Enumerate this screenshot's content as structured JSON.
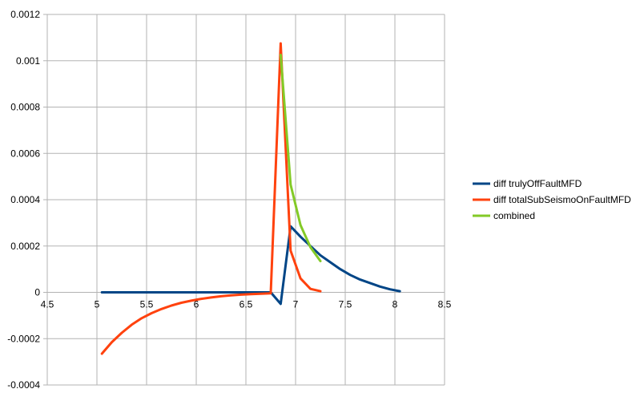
{
  "chart_data": {
    "type": "line",
    "title": "",
    "xlabel": "",
    "ylabel": "",
    "xlim": [
      4.5,
      8.5
    ],
    "ylim": [
      -0.0004,
      0.0012
    ],
    "grid": true,
    "legend_position": "right",
    "x_ticks": [
      "4.5",
      "5",
      "5.5",
      "6",
      "6.5",
      "7",
      "7.5",
      "8",
      "8.5"
    ],
    "y_ticks": [
      "0.0012",
      "0.001",
      "0.0008",
      "0.0006",
      "0.0004",
      "0.0002",
      "0",
      "-0.0002",
      "-0.0004"
    ],
    "series": [
      {
        "name": "diff trulyOffFaultMFD",
        "color": "#004586",
        "x": [
          5.05,
          5.5,
          6.0,
          6.5,
          6.75,
          6.85,
          6.95,
          7.05,
          7.15,
          7.25,
          7.35,
          7.45,
          7.55,
          7.65,
          7.75,
          7.85,
          7.95,
          8.05
        ],
        "y": [
          0,
          0,
          0,
          0,
          0,
          -5e-05,
          0.000285,
          0.00024,
          0.0002,
          0.00016,
          0.00013,
          0.0001,
          7.5e-05,
          5.5e-05,
          4e-05,
          2.5e-05,
          1.3e-05,
          5e-06
        ]
      },
      {
        "name": "diff totalSubSeismoOnFaultMFD",
        "color": "#ff420e",
        "x": [
          5.05,
          5.15,
          5.25,
          5.35,
          5.45,
          5.55,
          5.65,
          5.75,
          5.85,
          5.95,
          6.05,
          6.15,
          6.25,
          6.35,
          6.45,
          6.55,
          6.65,
          6.75,
          6.85,
          6.95,
          7.05,
          7.15,
          7.25
        ],
        "y": [
          -0.000265,
          -0.000215,
          -0.000175,
          -0.00014,
          -0.000112,
          -9e-05,
          -7.2e-05,
          -5.7e-05,
          -4.5e-05,
          -3.6e-05,
          -2.8e-05,
          -2.2e-05,
          -1.7e-05,
          -1.3e-05,
          -1e-05,
          -8e-06,
          -6e-06,
          -4e-06,
          0.001075,
          0.00018,
          6e-05,
          1.5e-05,
          5e-06
        ]
      },
      {
        "name": "combined",
        "color": "#83ca27",
        "x": [
          6.85,
          6.95,
          7.05,
          7.15,
          7.25
        ],
        "y": [
          0.001025,
          0.000465,
          0.00029,
          0.000195,
          0.000135
        ]
      }
    ]
  }
}
